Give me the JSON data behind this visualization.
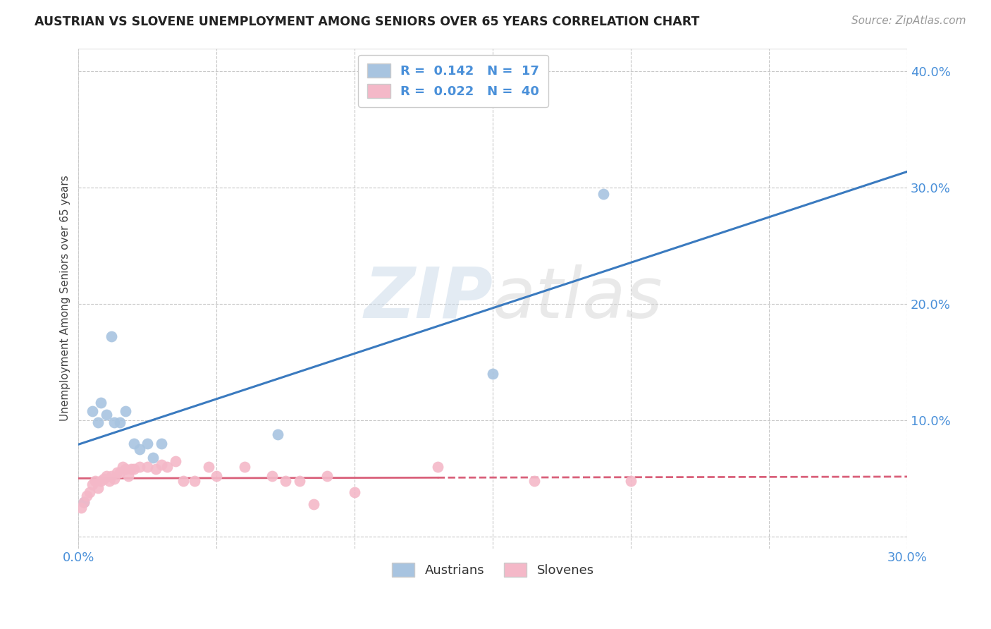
{
  "title": "AUSTRIAN VS SLOVENE UNEMPLOYMENT AMONG SENIORS OVER 65 YEARS CORRELATION CHART",
  "source": "Source: ZipAtlas.com",
  "ylabel": "Unemployment Among Seniors over 65 years",
  "xlim": [
    0.0,
    0.3
  ],
  "ylim": [
    -0.01,
    0.42
  ],
  "xticks": [
    0.0,
    0.05,
    0.1,
    0.15,
    0.2,
    0.25,
    0.3
  ],
  "yticks": [
    0.0,
    0.1,
    0.2,
    0.3,
    0.4
  ],
  "legend_r1": "R =  0.142",
  "legend_n1": "N =  17",
  "legend_r2": "R =  0.022",
  "legend_n2": "N =  40",
  "austrians_x": [
    0.002,
    0.005,
    0.007,
    0.008,
    0.01,
    0.012,
    0.013,
    0.015,
    0.017,
    0.02,
    0.022,
    0.025,
    0.027,
    0.03,
    0.072,
    0.15,
    0.19
  ],
  "austrians_y": [
    0.03,
    0.108,
    0.098,
    0.115,
    0.105,
    0.172,
    0.098,
    0.098,
    0.108,
    0.08,
    0.075,
    0.08,
    0.068,
    0.08,
    0.088,
    0.14,
    0.295
  ],
  "slovenes_x": [
    0.001,
    0.002,
    0.003,
    0.004,
    0.005,
    0.006,
    0.007,
    0.008,
    0.009,
    0.01,
    0.011,
    0.012,
    0.013,
    0.014,
    0.015,
    0.016,
    0.017,
    0.018,
    0.019,
    0.02,
    0.022,
    0.025,
    0.028,
    0.03,
    0.032,
    0.035,
    0.038,
    0.042,
    0.047,
    0.05,
    0.06,
    0.07,
    0.075,
    0.08,
    0.085,
    0.09,
    0.1,
    0.13,
    0.165,
    0.2
  ],
  "slovenes_y": [
    0.025,
    0.03,
    0.035,
    0.038,
    0.045,
    0.048,
    0.042,
    0.048,
    0.05,
    0.052,
    0.048,
    0.052,
    0.05,
    0.055,
    0.055,
    0.06,
    0.058,
    0.052,
    0.058,
    0.058,
    0.06,
    0.06,
    0.058,
    0.062,
    0.06,
    0.065,
    0.048,
    0.048,
    0.06,
    0.052,
    0.06,
    0.052,
    0.048,
    0.048,
    0.028,
    0.052,
    0.038,
    0.06,
    0.048,
    0.048
  ],
  "austrian_color": "#a8c4e0",
  "slovene_color": "#f4b8c8",
  "austrian_line_color": "#3a7abf",
  "slovene_line_color": "#d9607a",
  "watermark_zip": "ZIP",
  "watermark_atlas": "atlas",
  "background_color": "#ffffff",
  "grid_color": "#c8c8c8"
}
